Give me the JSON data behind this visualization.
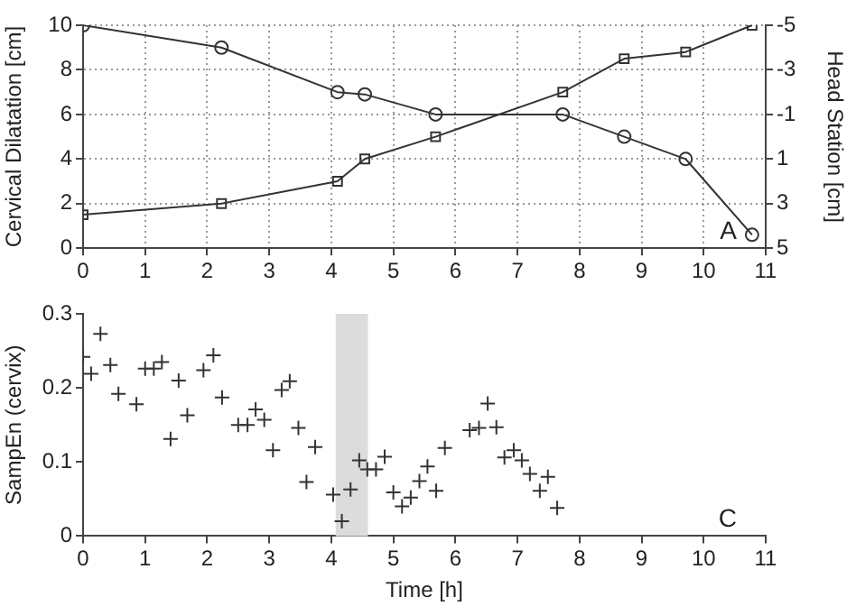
{
  "chart_data": [
    {
      "type": "line",
      "ylabel": "Cervical Dilatation [cm]",
      "y2label": "Head Station [cm]",
      "xlim": [
        0,
        11
      ],
      "xticks": [
        0,
        1,
        2,
        3,
        4,
        5,
        6,
        7,
        8,
        9,
        10,
        11
      ],
      "ylim": [
        0,
        10
      ],
      "yticks": [
        0,
        2,
        4,
        6,
        8,
        10
      ],
      "y2lim": [
        5,
        -5
      ],
      "y2ticks": [
        5,
        3,
        1,
        -1,
        -3,
        -5
      ],
      "grid": true,
      "legend": false,
      "line_style": "solid",
      "annotations": [
        "A"
      ],
      "series": [
        {
          "color": "#333333",
          "marker": "circle",
          "x": [
            0,
            2.23,
            4.1,
            4.54,
            5.68,
            7.73,
            8.72,
            9.71,
            10.78
          ],
          "values": [
            10,
            9,
            7,
            6.9,
            6,
            6,
            5,
            4,
            0.6
          ]
        },
        {
          "color": "#333333",
          "marker": "square",
          "axis": "y2",
          "x": [
            0,
            2.23,
            4.1,
            4.54,
            5.68,
            7.73,
            8.72,
            9.71,
            10.78
          ],
          "values": [
            3.5,
            3,
            2,
            1,
            0,
            -2,
            -3.5,
            -3.8,
            -5
          ]
        }
      ]
    },
    {
      "type": "scatter",
      "xlabel": "Time [h]",
      "ylabel": "SampEn (cervix)",
      "xlim": [
        0,
        11
      ],
      "xticks": [
        0,
        1,
        2,
        3,
        4,
        5,
        6,
        7,
        8,
        9,
        10,
        11
      ],
      "ylim": [
        0,
        0.3
      ],
      "yticks": [
        0,
        0.1,
        0.2,
        0.3
      ],
      "grid": false,
      "legend": false,
      "marker": "cross",
      "annotations": [
        "C"
      ],
      "bands": [
        {
          "axis": "x",
          "from": 4.07,
          "to": 4.59,
          "color": "#dcdcdc"
        }
      ],
      "series": [
        {
          "color": "#333333",
          "x": [
            0,
            0.13,
            0.28,
            0.44,
            0.57,
            0.86,
            1.0,
            1.14,
            1.27,
            1.41,
            1.54,
            1.68,
            1.94,
            2.1,
            2.24,
            2.5,
            2.65,
            2.78,
            2.92,
            3.06,
            3.2,
            3.33,
            3.47,
            3.6,
            3.74,
            4.03,
            4.17,
            4.31,
            4.45,
            4.58,
            4.72,
            4.86,
            5.0,
            5.14,
            5.28,
            5.42,
            5.55,
            5.69,
            5.83,
            6.23,
            6.38,
            6.52,
            6.66,
            6.79,
            6.94,
            7.07,
            7.2,
            7.36,
            7.49,
            7.64
          ],
          "values": [
            0.242,
            0.219,
            0.273,
            0.231,
            0.192,
            0.178,
            0.226,
            0.226,
            0.235,
            0.131,
            0.21,
            0.163,
            0.224,
            0.244,
            0.187,
            0.15,
            0.15,
            0.171,
            0.157,
            0.116,
            0.197,
            0.209,
            0.146,
            0.073,
            0.12,
            0.056,
            0.02,
            0.063,
            0.102,
            0.09,
            0.09,
            0.107,
            0.059,
            0.04,
            0.052,
            0.074,
            0.094,
            0.061,
            0.119,
            0.143,
            0.146,
            0.179,
            0.147,
            0.106,
            0.116,
            0.102,
            0.084,
            0.061,
            0.08,
            0.038
          ]
        }
      ]
    }
  ]
}
